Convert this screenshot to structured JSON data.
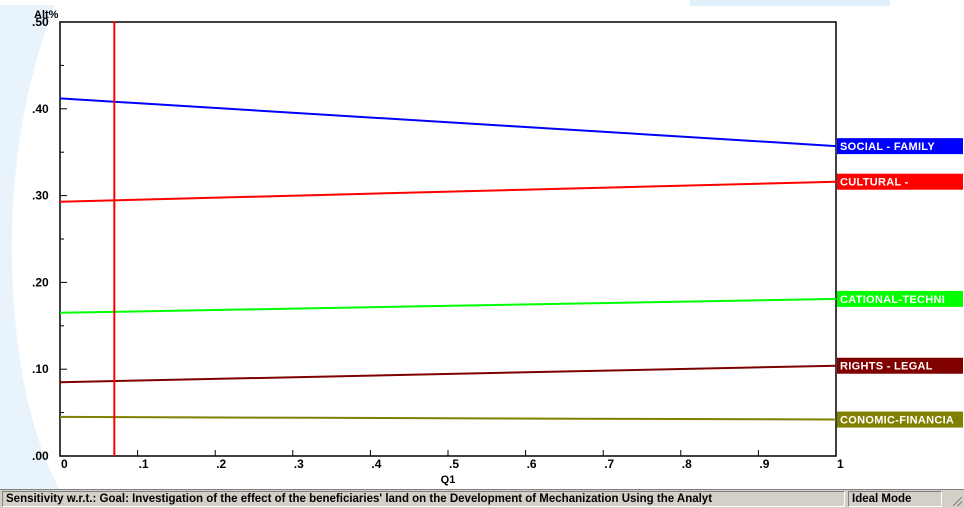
{
  "chart_data": {
    "type": "line",
    "title": "",
    "ylabel": "Alt%",
    "xlabel": "Q1",
    "xlim": [
      0,
      1
    ],
    "ylim": [
      0,
      0.5
    ],
    "x_ticks": [
      0,
      0.1,
      0.2,
      0.3,
      0.4,
      0.5,
      0.6,
      0.7,
      0.8,
      0.9,
      1
    ],
    "x_tick_labels": [
      "0",
      ".1",
      ".2",
      ".3",
      ".4",
      ".5",
      ".6",
      ".7",
      ".8",
      ".9",
      "1"
    ],
    "y_ticks": [
      0,
      0.1,
      0.2,
      0.3,
      0.4,
      0.5
    ],
    "y_tick_labels": [
      ".00",
      ".10",
      ".20",
      ".30",
      ".40",
      ".50"
    ],
    "grid": false,
    "legend": "right, as tags at line ends",
    "marker_x": 0.07,
    "marker_color": "#ff0000",
    "series": [
      {
        "name": "SOCIAL - FAMILY",
        "color": "#0000ff",
        "x": [
          0,
          1
        ],
        "values": [
          0.412,
          0.357
        ]
      },
      {
        "name": "CULTURAL -",
        "color": "#ff0000",
        "x": [
          0,
          1
        ],
        "values": [
          0.293,
          0.316
        ]
      },
      {
        "name": "CATIONAL-TECHNI",
        "color": "#00ff00",
        "x": [
          0,
          1
        ],
        "values": [
          0.165,
          0.181
        ]
      },
      {
        "name": "RIGHTS - LEGAL",
        "color": "#800000",
        "x": [
          0,
          1
        ],
        "values": [
          0.085,
          0.104
        ]
      },
      {
        "name": "CONOMIC-FINANCIA",
        "color": "#808000",
        "x": [
          0,
          0.33,
          0.67,
          1
        ],
        "values": [
          0.045,
          0.044,
          0.043,
          0.042
        ]
      }
    ]
  },
  "status_bar": {
    "main_text": "Sensitivity w.r.t.: Goal: Investigation of the effect of the beneficiaries' land on the Development of Mechanization Using the Analyt",
    "mode_text": "Ideal Mode"
  }
}
